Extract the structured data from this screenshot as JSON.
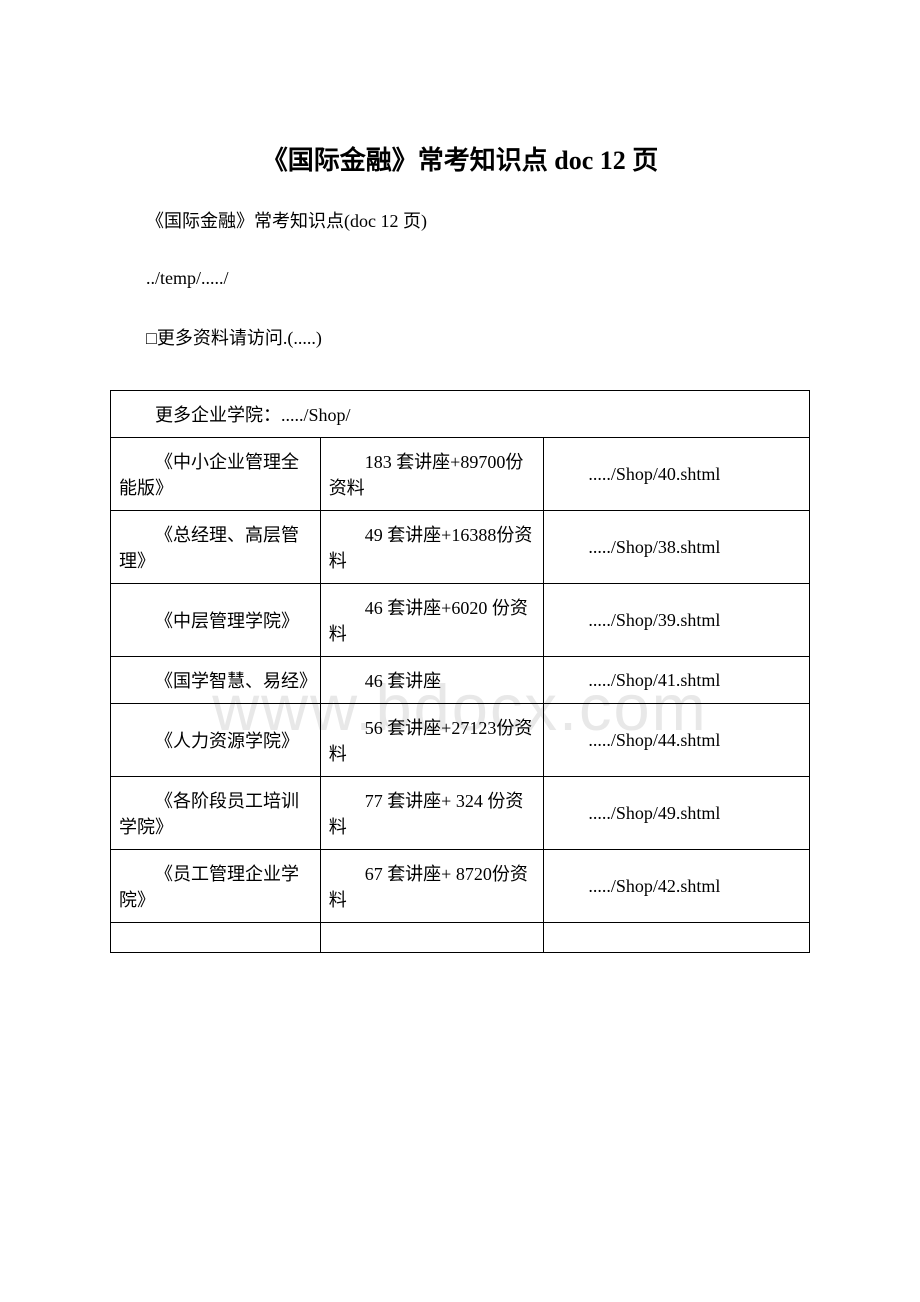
{
  "title": "《国际金融》常考知识点 doc 12 页",
  "subtitle": "《国际金融》常考知识点(doc 12 页)",
  "tempPath": "../temp/...../",
  "moreInfo": "□更多资料请访问.(.....)",
  "tableHeader": "更多企业学院：...../Shop/",
  "watermark": "www.bdocx.com",
  "rows": [
    {
      "name": "《中小企业管理全能版》",
      "content": "183 套讲座+89700份资料",
      "link": "...../Shop/40.shtml"
    },
    {
      "name": "《总经理、高层管理》",
      "content": "49 套讲座+16388份资料",
      "link": "...../Shop/38.shtml"
    },
    {
      "name": "《中层管理学院》",
      "content": "46 套讲座+6020 份资料",
      "link": "...../Shop/39.shtml"
    },
    {
      "name": "《国学智慧、易经》",
      "content": "46 套讲座",
      "link": "...../Shop/41.shtml"
    },
    {
      "name": "《人力资源学院》",
      "content": "56 套讲座+27123份资料",
      "link": "...../Shop/44.shtml"
    },
    {
      "name": "《各阶段员工培训学院》",
      "content": "77 套讲座+ 324 份资料",
      "link": "...../Shop/49.shtml"
    },
    {
      "name": "《员工管理企业学院》",
      "content": "67 套讲座+ 8720份资料",
      "link": "...../Shop/42.shtml"
    }
  ]
}
